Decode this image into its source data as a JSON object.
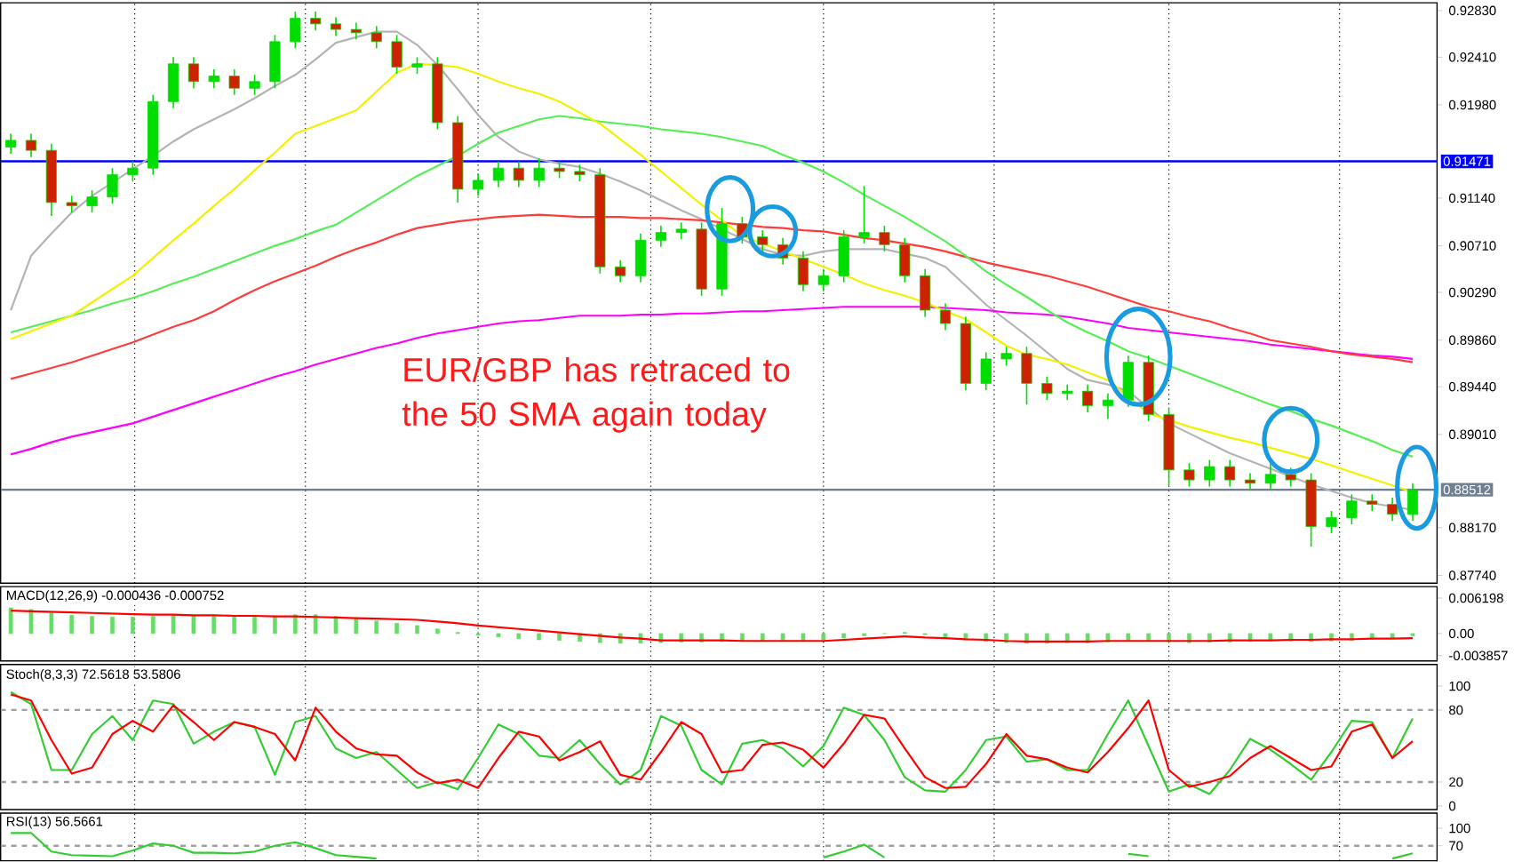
{
  "chart_data": [
    {
      "type": "candlestick",
      "tick_labels": "y",
      "grid": "x",
      "categories": [
        null,
        null,
        null,
        null,
        null,
        null,
        null,
        null,
        null,
        null,
        null,
        null,
        null,
        null,
        null,
        null,
        null,
        null,
        null,
        null,
        null,
        null,
        null,
        null,
        null,
        null,
        null,
        null,
        null,
        null,
        null,
        null,
        null,
        null,
        null,
        null,
        null,
        null,
        null,
        null,
        null,
        null,
        null,
        null,
        null,
        null,
        null,
        null,
        null,
        null,
        null,
        null,
        null,
        null,
        null,
        null,
        null,
        null,
        null,
        null,
        null,
        null,
        null,
        null,
        null,
        null,
        null,
        null,
        null,
        null
      ],
      "ohlc": [
        [
          0.916,
          0.9172,
          0.9154,
          0.9166
        ],
        [
          0.9166,
          0.9172,
          0.9151,
          0.9157
        ],
        [
          0.9157,
          0.9163,
          0.9098,
          0.911
        ],
        [
          0.911,
          0.9116,
          0.9101,
          0.9107
        ],
        [
          0.9107,
          0.9121,
          0.9101,
          0.9115
        ],
        [
          0.9115,
          0.9141,
          0.9109,
          0.9135
        ],
        [
          0.9135,
          0.9147,
          0.9129,
          0.9141
        ],
        [
          0.9141,
          0.9207,
          0.9135,
          0.9201
        ],
        [
          0.9201,
          0.9241,
          0.9195,
          0.9235
        ],
        [
          0.9235,
          0.9241,
          0.9213,
          0.9219
        ],
        [
          0.9219,
          0.923,
          0.9213,
          0.9224
        ],
        [
          0.9224,
          0.923,
          0.9207,
          0.9213
        ],
        [
          0.9213,
          0.9225,
          0.9207,
          0.9219
        ],
        [
          0.9219,
          0.9261,
          0.9213,
          0.9255
        ],
        [
          0.9255,
          0.9282,
          0.9249,
          0.9276
        ],
        [
          0.9276,
          0.9282,
          0.9265,
          0.9271
        ],
        [
          0.9271,
          0.9277,
          0.926,
          0.9266
        ],
        [
          0.9266,
          0.9272,
          0.9257,
          0.9263
        ],
        [
          0.9263,
          0.9269,
          0.9249,
          0.9255
        ],
        [
          0.9255,
          0.9261,
          0.9226,
          0.9232
        ],
        [
          0.9232,
          0.9241,
          0.9226,
          0.9235
        ],
        [
          0.9235,
          0.9241,
          0.9176,
          0.9182
        ],
        [
          0.9182,
          0.9188,
          0.911,
          0.9122
        ],
        [
          0.9122,
          0.9136,
          0.9116,
          0.913
        ],
        [
          0.913,
          0.9147,
          0.9124,
          0.9141
        ],
        [
          0.9141,
          0.9147,
          0.9124,
          0.913
        ],
        [
          0.913,
          0.915,
          0.9124,
          0.9141
        ],
        [
          0.9141,
          0.9147,
          0.9132,
          0.9138
        ],
        [
          0.9138,
          0.9144,
          0.9129,
          0.9135
        ],
        [
          0.9135,
          0.9141,
          0.9046,
          0.9052
        ],
        [
          0.9052,
          0.9058,
          0.9038,
          0.9044
        ],
        [
          0.9044,
          0.9082,
          0.9038,
          0.9076
        ],
        [
          0.9076,
          0.9089,
          0.907,
          0.9083
        ],
        [
          0.9083,
          0.9092,
          0.9077,
          0.9086
        ],
        [
          0.9086,
          0.9092,
          0.9026,
          0.9032
        ],
        [
          0.9032,
          0.9105,
          0.9026,
          0.9091
        ],
        [
          0.9091,
          0.9097,
          0.9073,
          0.9079
        ],
        [
          0.9079,
          0.9085,
          0.9066,
          0.9072
        ],
        [
          0.9072,
          0.9078,
          0.9054,
          0.906
        ],
        [
          0.906,
          0.9066,
          0.903,
          0.9036
        ],
        [
          0.9036,
          0.905,
          0.903,
          0.9044
        ],
        [
          0.9044,
          0.9085,
          0.9038,
          0.9079
        ],
        [
          0.9079,
          0.9125,
          0.9073,
          0.9083
        ],
        [
          0.9083,
          0.9089,
          0.9066,
          0.9072
        ],
        [
          0.9072,
          0.9078,
          0.9038,
          0.9044
        ],
        [
          0.9044,
          0.905,
          0.9007,
          0.9013
        ],
        [
          0.9013,
          0.9019,
          0.8995,
          0.9001
        ],
        [
          0.9001,
          0.9007,
          0.8941,
          0.8947
        ],
        [
          0.8947,
          0.8975,
          0.8941,
          0.8969
        ],
        [
          0.8969,
          0.898,
          0.8963,
          0.8974
        ],
        [
          0.8974,
          0.898,
          0.8928,
          0.8947
        ],
        [
          0.8947,
          0.8953,
          0.8932,
          0.8938
        ],
        [
          0.8938,
          0.8946,
          0.8932,
          0.894
        ],
        [
          0.894,
          0.8946,
          0.8921,
          0.8927
        ],
        [
          0.8927,
          0.8938,
          0.8915,
          0.8932
        ],
        [
          0.8932,
          0.8972,
          0.8926,
          0.8966
        ],
        [
          0.8966,
          0.8972,
          0.8913,
          0.8919
        ],
        [
          0.8919,
          0.8925,
          0.8855,
          0.8869
        ],
        [
          0.8869,
          0.8875,
          0.8854,
          0.886
        ],
        [
          0.886,
          0.8878,
          0.8854,
          0.8872
        ],
        [
          0.8872,
          0.8878,
          0.8854,
          0.886
        ],
        [
          0.886,
          0.8866,
          0.8851,
          0.8857
        ],
        [
          0.8857,
          0.888,
          0.8851,
          0.8865
        ],
        [
          0.8865,
          0.8871,
          0.8854,
          0.886
        ],
        [
          0.886,
          0.8866,
          0.88,
          0.8818
        ],
        [
          0.8818,
          0.8832,
          0.8812,
          0.8826
        ],
        [
          0.8826,
          0.8847,
          0.882,
          0.8841
        ],
        [
          0.8841,
          0.8847,
          0.8832,
          0.8838
        ],
        [
          0.8838,
          0.8844,
          0.8823,
          0.8829
        ],
        [
          0.8829,
          0.8857,
          0.8823,
          0.8851
        ]
      ],
      "series": [
        {
          "type": "line",
          "color": "#b4b4b4",
          "values": [
            0.9013,
            0.9062,
            0.9082,
            0.9101,
            0.9116,
            0.9128,
            0.914,
            0.9152,
            0.9165,
            0.9176,
            0.9185,
            0.9194,
            0.9204,
            0.9215,
            0.9225,
            0.9239,
            0.9254,
            0.9259,
            0.9264,
            0.9264,
            0.9252,
            0.9234,
            0.9212,
            0.9189,
            0.9169,
            0.9156,
            0.9149,
            0.9145,
            0.9142,
            0.9136,
            0.9129,
            0.9121,
            0.9112,
            0.9103,
            0.9095,
            0.9086,
            0.9077,
            0.9068,
            0.9063,
            0.9062,
            0.9066,
            0.9068,
            0.9068,
            0.9068,
            0.9064,
            0.906,
            0.9052,
            0.9035,
            0.9018,
            0.9004,
            0.899,
            0.8975,
            0.896,
            0.895,
            0.8946,
            0.894,
            0.8925,
            0.8911,
            0.8902,
            0.8893,
            0.8884,
            0.8877,
            0.887,
            0.8863,
            0.8856,
            0.885,
            0.8844,
            0.8839,
            0.8836,
            0.8833
          ]
        },
        {
          "type": "line",
          "color": "#ff00ff",
          "values": [
            0.8883,
            0.8888,
            0.8894,
            0.8899,
            0.8903,
            0.8907,
            0.8911,
            0.8917,
            0.8923,
            0.8929,
            0.8935,
            0.8941,
            0.8947,
            0.8953,
            0.8958,
            0.8964,
            0.8969,
            0.8974,
            0.8979,
            0.8983,
            0.8988,
            0.8992,
            0.8995,
            0.8998,
            0.9001,
            0.9003,
            0.9004,
            0.9006,
            0.9008,
            0.9008,
            0.9008,
            0.9009,
            0.9009,
            0.901,
            0.901,
            0.9011,
            0.9012,
            0.9012,
            0.9013,
            0.9014,
            0.9015,
            0.9016,
            0.9016,
            0.9016,
            0.9016,
            0.9016,
            0.9015,
            0.9014,
            0.9013,
            0.9011,
            0.901,
            0.9009,
            0.9007,
            0.9004,
            0.9001,
            0.8997,
            0.8995,
            0.8993,
            0.8991,
            0.8989,
            0.8987,
            0.8985,
            0.8982,
            0.898,
            0.8978,
            0.8976,
            0.8974,
            0.8972,
            0.8971,
            0.8969
          ]
        },
        {
          "type": "line",
          "color": "#ff3c3c",
          "values": [
            0.8951,
            0.8956,
            0.8961,
            0.8966,
            0.8972,
            0.8978,
            0.8984,
            0.8991,
            0.8998,
            0.9004,
            0.9012,
            0.9022,
            0.9031,
            0.9039,
            0.9046,
            0.9053,
            0.9061,
            0.9068,
            0.9074,
            0.9081,
            0.9087,
            0.909,
            0.9093,
            0.9095,
            0.9097,
            0.9098,
            0.9099,
            0.9098,
            0.9097,
            0.9097,
            0.9097,
            0.9096,
            0.9096,
            0.9095,
            0.9094,
            0.9092,
            0.909,
            0.9088,
            0.9087,
            0.9085,
            0.9084,
            0.9081,
            0.9078,
            0.9076,
            0.9073,
            0.907,
            0.9066,
            0.9061,
            0.9056,
            0.9052,
            0.9048,
            0.9044,
            0.9039,
            0.9034,
            0.9028,
            0.9022,
            0.9016,
            0.9012,
            0.9007,
            0.9003,
            0.8997,
            0.8992,
            0.8986,
            0.8983,
            0.898,
            0.8976,
            0.8973,
            0.8971,
            0.8969,
            0.8966
          ]
        },
        {
          "type": "line",
          "color": "#55ee55",
          "values": [
            0.8993,
            0.8998,
            0.9003,
            0.9008,
            0.9013,
            0.9019,
            0.9024,
            0.903,
            0.9037,
            0.9043,
            0.905,
            0.9057,
            0.9064,
            0.9071,
            0.9077,
            0.9084,
            0.909,
            0.9101,
            0.9112,
            0.9123,
            0.9134,
            0.9143,
            0.9152,
            0.9163,
            0.9173,
            0.9179,
            0.9185,
            0.9188,
            0.9186,
            0.9183,
            0.9181,
            0.9179,
            0.9176,
            0.9174,
            0.9172,
            0.9169,
            0.9165,
            0.9161,
            0.9153,
            0.9146,
            0.9138,
            0.9128,
            0.9117,
            0.9107,
            0.9097,
            0.9086,
            0.9075,
            0.9062,
            0.9048,
            0.9036,
            0.9025,
            0.9013,
            0.9002,
            0.8993,
            0.8985,
            0.8976,
            0.897,
            0.8963,
            0.8956,
            0.8949,
            0.8942,
            0.8935,
            0.8928,
            0.8922,
            0.8915,
            0.8909,
            0.8902,
            0.8895,
            0.8887,
            0.8881
          ]
        },
        {
          "type": "line",
          "color": "#f2f200",
          "values": [
            0.8987,
            0.8994,
            0.9001,
            0.9008,
            0.902,
            0.9032,
            0.9044,
            0.906,
            0.9076,
            0.9091,
            0.9107,
            0.9122,
            0.9139,
            0.9155,
            0.9172,
            0.9179,
            0.9186,
            0.9193,
            0.921,
            0.9227,
            0.9235,
            0.9234,
            0.9232,
            0.9226,
            0.9219,
            0.9213,
            0.9208,
            0.9201,
            0.9191,
            0.9181,
            0.9167,
            0.9153,
            0.9138,
            0.9123,
            0.9108,
            0.9094,
            0.908,
            0.9073,
            0.9066,
            0.9059,
            0.9052,
            0.9045,
            0.9037,
            0.9031,
            0.9026,
            0.902,
            0.9012,
            0.9005,
            0.8993,
            0.8981,
            0.8973,
            0.8969,
            0.8964,
            0.8957,
            0.895,
            0.8935,
            0.892,
            0.8914,
            0.8908,
            0.8903,
            0.8898,
            0.8894,
            0.8889,
            0.8884,
            0.8879,
            0.8873,
            0.8867,
            0.8861,
            0.8855,
            0.8849
          ]
        }
      ],
      "ylim": [
        0.8767,
        0.929
      ],
      "yticks": [
        {
          "value": 0.8774,
          "label": "0.87740"
        },
        {
          "value": 0.8817,
          "label": "0.88170"
        },
        {
          "value": 0.8901,
          "label": "0.89010"
        },
        {
          "value": 0.8944,
          "label": "0.89440"
        },
        {
          "value": 0.8986,
          "label": "0.89860"
        },
        {
          "value": 0.9029,
          "label": "0.90290"
        },
        {
          "value": 0.9071,
          "label": "0.90710"
        },
        {
          "value": 0.9114,
          "label": "0.91140"
        },
        {
          "value": 0.9198,
          "label": "0.91980"
        },
        {
          "value": 0.9241,
          "label": "0.92410"
        },
        {
          "value": 0.9283,
          "label": "0.92830"
        }
      ],
      "ref_lines": [
        {
          "axis": "y",
          "value": 0.91471,
          "label": "0.91471",
          "color": "#0000ff",
          "line_style": "solid"
        },
        {
          "axis": "y",
          "value": 0.88512,
          "label": "0.88512",
          "color": "#708090",
          "line_style": "solid"
        }
      ],
      "annotations": [
        "EUR/GBP has retraced to the 50 SMA again today"
      ]
    },
    {
      "type": "bar",
      "title": "MACD(12,26,9) -0.000436 -0.000752",
      "tick_labels": "y",
      "grid": "x",
      "categories": [
        null,
        null,
        null,
        null,
        null,
        null,
        null,
        null,
        null,
        null,
        null,
        null,
        null,
        null,
        null,
        null,
        null,
        null,
        null,
        null,
        null,
        null,
        null,
        null,
        null,
        null,
        null,
        null,
        null,
        null,
        null,
        null,
        null,
        null,
        null,
        null,
        null,
        null,
        null,
        null,
        null,
        null,
        null,
        null,
        null,
        null,
        null,
        null,
        null,
        null,
        null,
        null,
        null,
        null,
        null,
        null,
        null,
        null,
        null,
        null,
        null,
        null,
        null,
        null,
        null,
        null,
        null,
        null,
        null,
        null
      ],
      "series": [
        {
          "type": "bar",
          "color": "#66dd66",
          "values": [
            0.0045,
            0.0042,
            0.0036,
            0.0032,
            0.003,
            0.0029,
            0.0029,
            0.003,
            0.0032,
            0.0031,
            0.003,
            0.0029,
            0.0029,
            0.0031,
            0.0033,
            0.0033,
            0.003,
            0.0026,
            0.0022,
            0.0018,
            0.0014,
            0.0008,
            0.0002,
            -0.0003,
            -0.0006,
            -0.0009,
            -0.0011,
            -0.0012,
            -0.0014,
            -0.0016,
            -0.0017,
            -0.0017,
            -0.0016,
            -0.0015,
            -0.0015,
            -0.0014,
            -0.0013,
            -0.0013,
            -0.0012,
            -0.0012,
            -0.0011,
            -0.0008,
            -0.0004,
            0.0,
            0.0002,
            -0.0002,
            -0.0006,
            -0.0011,
            -0.0014,
            -0.0016,
            -0.0017,
            -0.0017,
            -0.0016,
            -0.0016,
            -0.0015,
            -0.0012,
            -0.0013,
            -0.0015,
            -0.0016,
            -0.0015,
            -0.0015,
            -0.0014,
            -0.0013,
            -0.0013,
            -0.0014,
            -0.0013,
            -0.0012,
            -0.001,
            -0.0008,
            -0.0004
          ]
        },
        {
          "type": "line",
          "color": "#ff0000",
          "values": [
            0.004,
            0.0039,
            0.0038,
            0.0037,
            0.0036,
            0.0035,
            0.0034,
            0.0033,
            0.0033,
            0.0032,
            0.0032,
            0.0031,
            0.0031,
            0.003,
            0.003,
            0.0029,
            0.0028,
            0.0027,
            0.0026,
            0.0025,
            0.0024,
            0.0021,
            0.0018,
            0.0014,
            0.0011,
            0.0008,
            0.0005,
            0.0002,
            -0.0001,
            -0.0004,
            -0.0007,
            -0.0009,
            -0.0012,
            -0.0012,
            -0.0012,
            -0.0012,
            -0.0013,
            -0.0013,
            -0.0013,
            -0.0013,
            -0.0013,
            -0.0011,
            -0.0009,
            -0.0007,
            -0.0005,
            -0.0007,
            -0.0008,
            -0.001,
            -0.0011,
            -0.0013,
            -0.0014,
            -0.0014,
            -0.0014,
            -0.0014,
            -0.0013,
            -0.0013,
            -0.0013,
            -0.0013,
            -0.0013,
            -0.0013,
            -0.0012,
            -0.0012,
            -0.0012,
            -0.0011,
            -0.0011,
            -0.001,
            -0.001,
            -0.0009,
            -0.0009,
            -0.0008
          ]
        }
      ],
      "ylim": [
        -0.0048,
        0.0082
      ],
      "yticks": [
        -0.003857,
        {
          "value": 0,
          "label": "0.00"
        },
        0.006198
      ]
    },
    {
      "type": "line",
      "title": "Stoch(8,3,3) 72.5618 53.5806",
      "tick_labels": "y",
      "grid": "x",
      "categories": [
        null,
        null,
        null,
        null,
        null,
        null,
        null,
        null,
        null,
        null,
        null,
        null,
        null,
        null,
        null,
        null,
        null,
        null,
        null,
        null,
        null,
        null,
        null,
        null,
        null,
        null,
        null,
        null,
        null,
        null,
        null,
        null,
        null,
        null,
        null,
        null,
        null,
        null,
        null,
        null,
        null,
        null,
        null,
        null,
        null,
        null,
        null,
        null,
        null,
        null,
        null,
        null,
        null,
        null,
        null,
        null,
        null,
        null,
        null,
        null,
        null,
        null,
        null,
        null,
        null,
        null,
        null,
        null,
        null,
        null
      ],
      "series": [
        {
          "color": "#33cc33",
          "values": [
            95,
            85,
            30,
            30,
            60,
            75,
            55,
            88,
            85,
            52,
            62,
            70,
            66,
            26,
            70,
            75,
            48,
            40,
            45,
            30,
            15,
            20,
            14,
            40,
            68,
            60,
            42,
            40,
            55,
            35,
            18,
            30,
            75,
            67,
            30,
            18,
            52,
            55,
            48,
            33,
            50,
            82,
            76,
            55,
            24,
            13,
            12,
            30,
            55,
            58,
            37,
            39,
            30,
            30,
            60,
            88,
            50,
            12,
            18,
            10,
            30,
            56,
            47,
            35,
            22,
            45,
            71,
            70,
            40,
            73
          ]
        },
        {
          "color": "#ff0000",
          "values": [
            93,
            88,
            55,
            27,
            32,
            60,
            71,
            62,
            84,
            70,
            55,
            70,
            66,
            60,
            38,
            82,
            62,
            48,
            43,
            42,
            28,
            19,
            22,
            15,
            40,
            62,
            58,
            38,
            45,
            54,
            26,
            22,
            45,
            70,
            60,
            28,
            30,
            51,
            53,
            47,
            32,
            52,
            76,
            73,
            48,
            24,
            15,
            16,
            35,
            60,
            42,
            39,
            32,
            28,
            45,
            65,
            88,
            30,
            16,
            20,
            25,
            40,
            50,
            40,
            30,
            33,
            62,
            68,
            40,
            54
          ]
        }
      ],
      "ylim": [
        -3,
        118
      ],
      "yticks": [
        0,
        20,
        80,
        100
      ],
      "ref_lines": [
        {
          "axis": "y",
          "value": 80,
          "color": "#a0a0a0",
          "line_style": "dashed"
        },
        {
          "axis": "y",
          "value": 20,
          "color": "#a0a0a0",
          "line_style": "dashed"
        }
      ]
    },
    {
      "type": "line",
      "title": "RSI(13) 56.5661",
      "tick_labels": "y",
      "grid": "x",
      "categories": [
        null,
        null,
        null,
        null,
        null,
        null,
        null,
        null,
        null,
        null,
        null,
        null,
        null,
        null,
        null,
        null,
        null,
        null,
        null,
        null,
        null,
        null,
        null,
        null,
        null,
        null,
        null,
        null,
        null,
        null,
        null,
        null,
        null,
        null,
        null,
        null,
        null,
        null,
        null,
        null,
        null,
        null,
        null,
        null,
        null,
        null,
        null,
        null,
        null,
        null,
        null,
        null,
        null,
        null,
        null,
        null,
        null,
        null,
        null,
        null,
        null,
        null,
        null,
        null,
        null,
        null,
        null,
        null,
        null,
        null
      ],
      "series": [
        {
          "color": "#33cc33",
          "values": [
            92,
            92,
            60,
            54,
            53,
            52,
            62,
            74,
            70,
            58,
            58,
            57,
            60,
            70,
            76,
            66,
            54,
            51,
            48,
            null,
            null,
            null,
            null,
            null,
            null,
            null,
            null,
            null,
            null,
            null,
            null,
            null,
            null,
            null,
            null,
            null,
            null,
            null,
            null,
            null,
            50,
            60,
            72,
            50,
            null,
            null,
            null,
            null,
            null,
            null,
            null,
            null,
            null,
            null,
            null,
            56,
            52,
            null,
            null,
            null,
            null,
            null,
            null,
            null,
            null,
            null,
            null,
            null,
            48,
            57
          ]
        }
      ],
      "ylim": [
        44,
        126
      ],
      "yticks": [
        70,
        100
      ],
      "ref_lines": [
        {
          "axis": "y",
          "value": 70,
          "color": "#a0a0a0",
          "line_style": "dashed"
        }
      ]
    }
  ]
}
